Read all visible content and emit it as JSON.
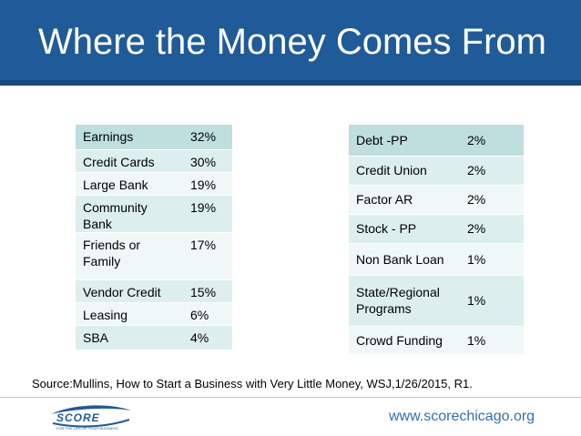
{
  "slide": {
    "title": "Where the Money Comes From",
    "source": "Source:Mullins, How to Start a Business with Very Little Money, WSJ,1/26/2015, R1.",
    "website": "www.scorechicago.org",
    "logo_text": "SCORE",
    "logo_tagline": "FOR THE LIFE OF YOUR BUSINESS"
  },
  "left_table": [
    {
      "name": "Earnings",
      "pct": "32%"
    },
    {
      "name": "Credit Cards",
      "pct": "30%"
    },
    {
      "name": "Large Bank",
      "pct": "19%"
    },
    {
      "name": "Community Bank",
      "pct": "19%"
    },
    {
      "name": "Friends or Family",
      "pct": "17%"
    },
    {
      "name": "Vendor Credit",
      "pct": "15%"
    },
    {
      "name": "Leasing",
      "pct": "6%"
    },
    {
      "name": "SBA",
      "pct": "4%"
    }
  ],
  "right_table": [
    {
      "name": "Debt -PP",
      "pct": "2%"
    },
    {
      "name": "Credit Union",
      "pct": "2%"
    },
    {
      "name": "Factor AR",
      "pct": "2%"
    },
    {
      "name": "Stock - PP",
      "pct": "2%"
    },
    {
      "name": "Non Bank Loan",
      "pct": "1%"
    },
    {
      "name": "State/Regional Programs",
      "pct": "1%"
    },
    {
      "name": "Crowd Funding",
      "pct": "1%"
    }
  ],
  "colors": {
    "header_bg": "#1f5a99",
    "table_header": "#bfdede",
    "table_row_odd": "#ddeeee",
    "table_row_even": "#f0f7f7",
    "url_color": "#2f6fb5"
  }
}
